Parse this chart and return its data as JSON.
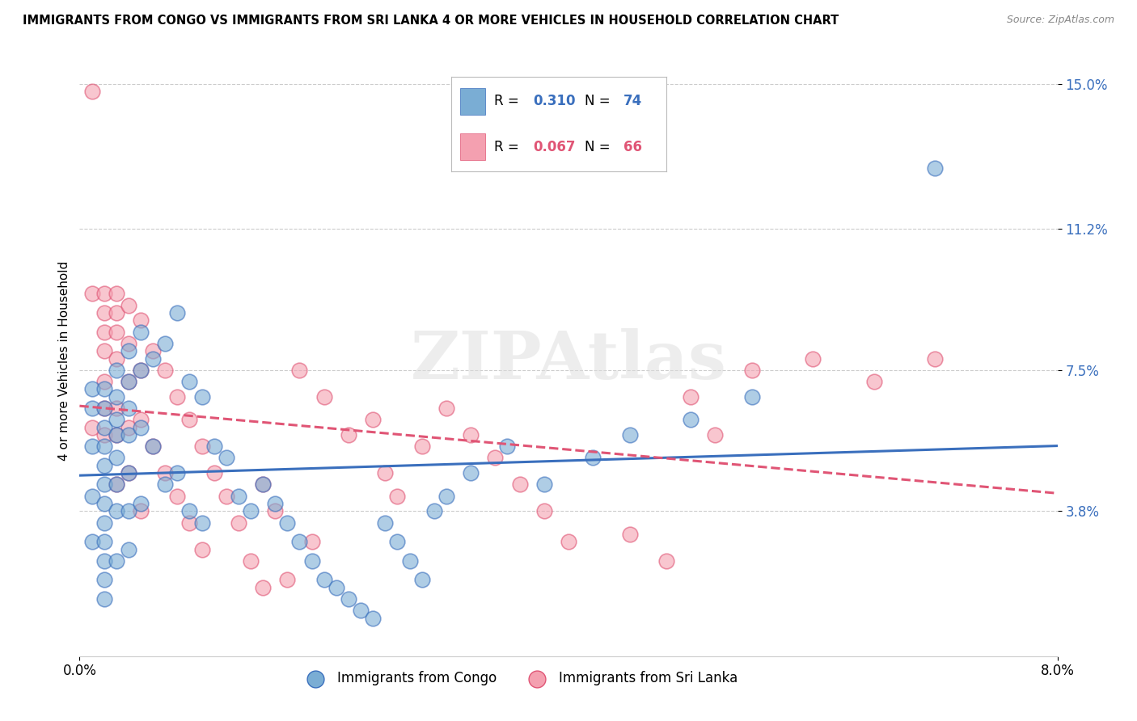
{
  "title": "IMMIGRANTS FROM CONGO VS IMMIGRANTS FROM SRI LANKA 4 OR MORE VEHICLES IN HOUSEHOLD CORRELATION CHART",
  "source": "Source: ZipAtlas.com",
  "ylabel": "4 or more Vehicles in Household",
  "xmin": 0.0,
  "xmax": 0.08,
  "ymin": 0.0,
  "ymax": 0.155,
  "yticks": [
    0.038,
    0.075,
    0.112,
    0.15
  ],
  "ytick_labels": [
    "3.8%",
    "7.5%",
    "11.2%",
    "15.0%"
  ],
  "xtick_labels": [
    "0.0%",
    "8.0%"
  ],
  "congo_R": 0.31,
  "congo_N": 74,
  "srilanka_R": 0.067,
  "srilanka_N": 66,
  "congo_color": "#7aadd4",
  "srilanka_color": "#f4a0b0",
  "congo_line_color": "#3a6fbd",
  "srilanka_line_color": "#e05575",
  "watermark": "ZIPAtlas",
  "legend_label_congo": "Immigrants from Congo",
  "legend_label_srilanka": "Immigrants from Sri Lanka",
  "congo_scatter_x": [
    0.001,
    0.001,
    0.001,
    0.001,
    0.001,
    0.002,
    0.002,
    0.002,
    0.002,
    0.002,
    0.002,
    0.002,
    0.002,
    0.002,
    0.002,
    0.002,
    0.002,
    0.003,
    0.003,
    0.003,
    0.003,
    0.003,
    0.003,
    0.003,
    0.003,
    0.004,
    0.004,
    0.004,
    0.004,
    0.004,
    0.004,
    0.004,
    0.005,
    0.005,
    0.005,
    0.005,
    0.006,
    0.006,
    0.007,
    0.007,
    0.008,
    0.008,
    0.009,
    0.009,
    0.01,
    0.01,
    0.011,
    0.012,
    0.013,
    0.014,
    0.015,
    0.016,
    0.017,
    0.018,
    0.019,
    0.02,
    0.021,
    0.022,
    0.023,
    0.024,
    0.025,
    0.026,
    0.027,
    0.028,
    0.029,
    0.03,
    0.032,
    0.035,
    0.038,
    0.042,
    0.045,
    0.05,
    0.055,
    0.07
  ],
  "congo_scatter_y": [
    0.055,
    0.065,
    0.07,
    0.042,
    0.03,
    0.07,
    0.065,
    0.06,
    0.055,
    0.05,
    0.045,
    0.04,
    0.035,
    0.03,
    0.025,
    0.02,
    0.015,
    0.075,
    0.068,
    0.062,
    0.058,
    0.052,
    0.045,
    0.038,
    0.025,
    0.08,
    0.072,
    0.065,
    0.058,
    0.048,
    0.038,
    0.028,
    0.085,
    0.075,
    0.06,
    0.04,
    0.078,
    0.055,
    0.082,
    0.045,
    0.09,
    0.048,
    0.072,
    0.038,
    0.068,
    0.035,
    0.055,
    0.052,
    0.042,
    0.038,
    0.045,
    0.04,
    0.035,
    0.03,
    0.025,
    0.02,
    0.018,
    0.015,
    0.012,
    0.01,
    0.035,
    0.03,
    0.025,
    0.02,
    0.038,
    0.042,
    0.048,
    0.055,
    0.045,
    0.052,
    0.058,
    0.062,
    0.068,
    0.128
  ],
  "srilanka_scatter_x": [
    0.001,
    0.001,
    0.001,
    0.002,
    0.002,
    0.002,
    0.002,
    0.002,
    0.002,
    0.002,
    0.003,
    0.003,
    0.003,
    0.003,
    0.003,
    0.003,
    0.003,
    0.004,
    0.004,
    0.004,
    0.004,
    0.004,
    0.005,
    0.005,
    0.005,
    0.005,
    0.006,
    0.006,
    0.007,
    0.007,
    0.008,
    0.008,
    0.009,
    0.009,
    0.01,
    0.01,
    0.011,
    0.012,
    0.013,
    0.014,
    0.015,
    0.015,
    0.016,
    0.017,
    0.018,
    0.019,
    0.02,
    0.022,
    0.024,
    0.025,
    0.026,
    0.028,
    0.03,
    0.032,
    0.034,
    0.036,
    0.038,
    0.04,
    0.045,
    0.048,
    0.05,
    0.052,
    0.055,
    0.06,
    0.065,
    0.07
  ],
  "srilanka_scatter_y": [
    0.148,
    0.095,
    0.06,
    0.095,
    0.09,
    0.085,
    0.08,
    0.072,
    0.065,
    0.058,
    0.095,
    0.09,
    0.085,
    0.078,
    0.065,
    0.058,
    0.045,
    0.092,
    0.082,
    0.072,
    0.06,
    0.048,
    0.088,
    0.075,
    0.062,
    0.038,
    0.08,
    0.055,
    0.075,
    0.048,
    0.068,
    0.042,
    0.062,
    0.035,
    0.055,
    0.028,
    0.048,
    0.042,
    0.035,
    0.025,
    0.045,
    0.018,
    0.038,
    0.02,
    0.075,
    0.03,
    0.068,
    0.058,
    0.062,
    0.048,
    0.042,
    0.055,
    0.065,
    0.058,
    0.052,
    0.045,
    0.038,
    0.03,
    0.032,
    0.025,
    0.068,
    0.058,
    0.075,
    0.078,
    0.072,
    0.078
  ]
}
